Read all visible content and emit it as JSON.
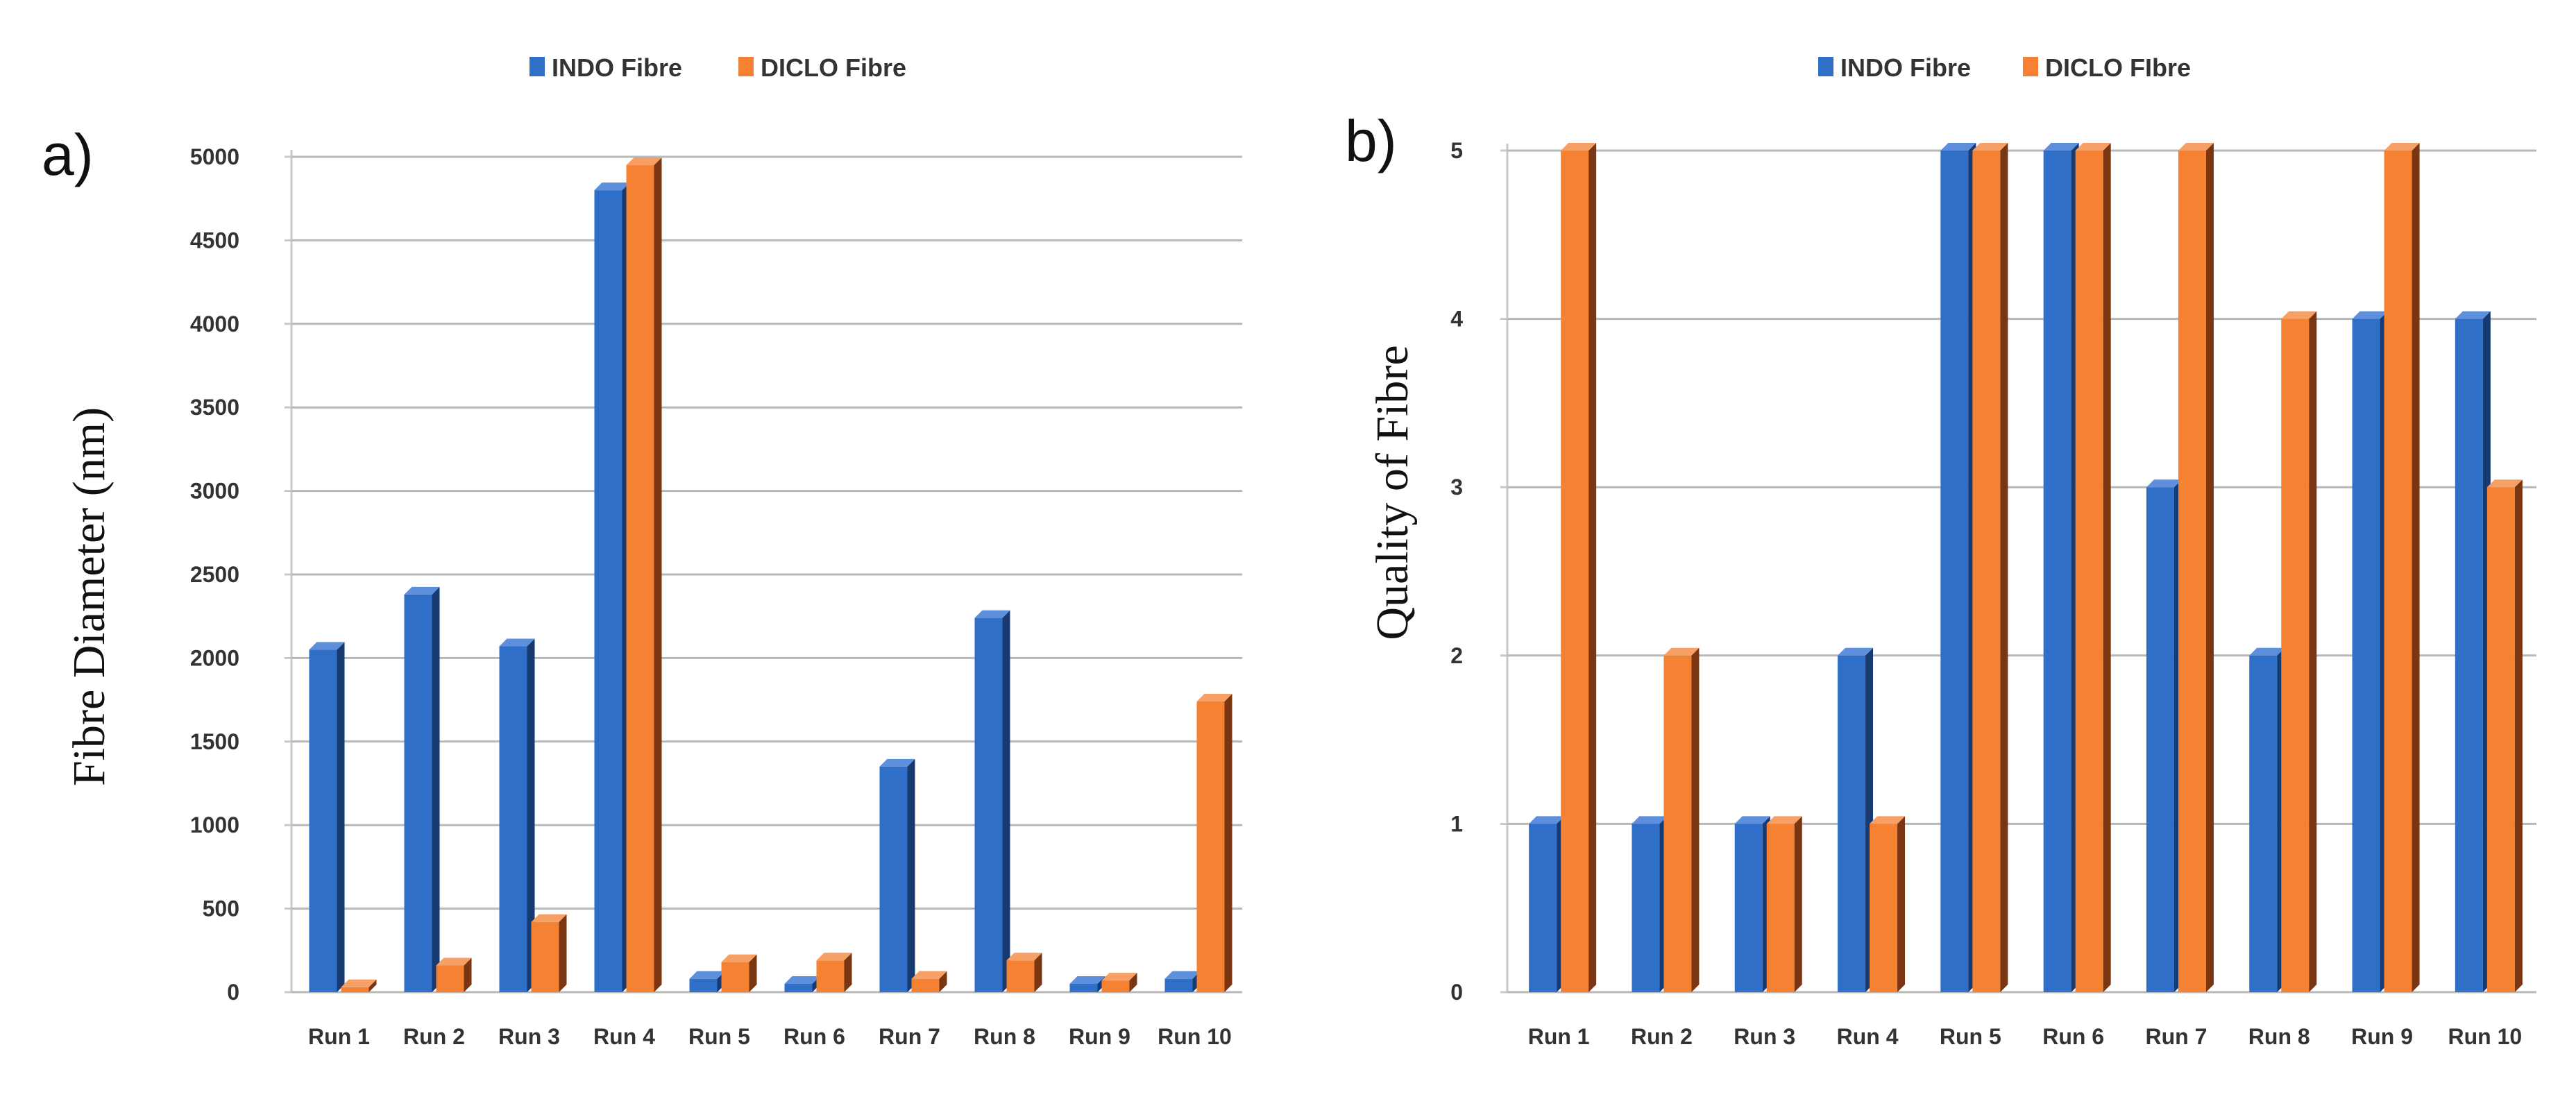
{
  "colors": {
    "indo_front": "#2f6fc8",
    "indo_side": "#173a70",
    "indo_top": "#5d8fdc",
    "diclo_front": "#f58232",
    "diclo_side": "#7a3512",
    "diclo_top": "#f7a066",
    "grid": "#b8b8b8"
  },
  "chart_data": [
    {
      "panel": "a)",
      "type": "bar",
      "categories": [
        "Run 1",
        "Run 2",
        "Run 3",
        "Run 4",
        "Run 5",
        "Run 6",
        "Run 7",
        "Run 8",
        "Run 9",
        "Run 10"
      ],
      "series": [
        {
          "name": "INDO Fibre",
          "values": [
            2050,
            2380,
            2070,
            4800,
            80,
            50,
            1350,
            2240,
            50,
            80
          ]
        },
        {
          "name": "DICLO Fibre",
          "values": [
            30,
            160,
            420,
            4950,
            180,
            190,
            80,
            190,
            70,
            1740
          ]
        }
      ],
      "ylabel": "Fibre Diameter (nm)",
      "xlabel": "",
      "ylim": [
        0,
        5000
      ],
      "yticks": [
        "0",
        "500",
        "1000",
        "1500",
        "2000",
        "2500",
        "3000",
        "3500",
        "4000",
        "4500",
        "5000"
      ],
      "legend": [
        "INDO Fibre",
        "DICLO Fibre"
      ],
      "legend_position": "top",
      "grid": true
    },
    {
      "panel": "b)",
      "type": "bar",
      "categories": [
        "Run 1",
        "Run 2",
        "Run 3",
        "Run 4",
        "Run 5",
        "Run 6",
        "Run 7",
        "Run 8",
        "Run 9",
        "Run 10"
      ],
      "series": [
        {
          "name": "INDO Fibre",
          "values": [
            1,
            1,
            1,
            2,
            5,
            5,
            3,
            2,
            4,
            4
          ]
        },
        {
          "name": "DICLO FIbre",
          "values": [
            5,
            2,
            1,
            1,
            5,
            5,
            5,
            4,
            5,
            3
          ]
        }
      ],
      "ylabel": "Quality of Fibre",
      "xlabel": "",
      "ylim": [
        0,
        5
      ],
      "yticks": [
        "0",
        "1",
        "2",
        "3",
        "4",
        "5"
      ],
      "legend": [
        "INDO Fibre",
        "DICLO FIbre"
      ],
      "legend_position": "top",
      "grid": true
    }
  ]
}
